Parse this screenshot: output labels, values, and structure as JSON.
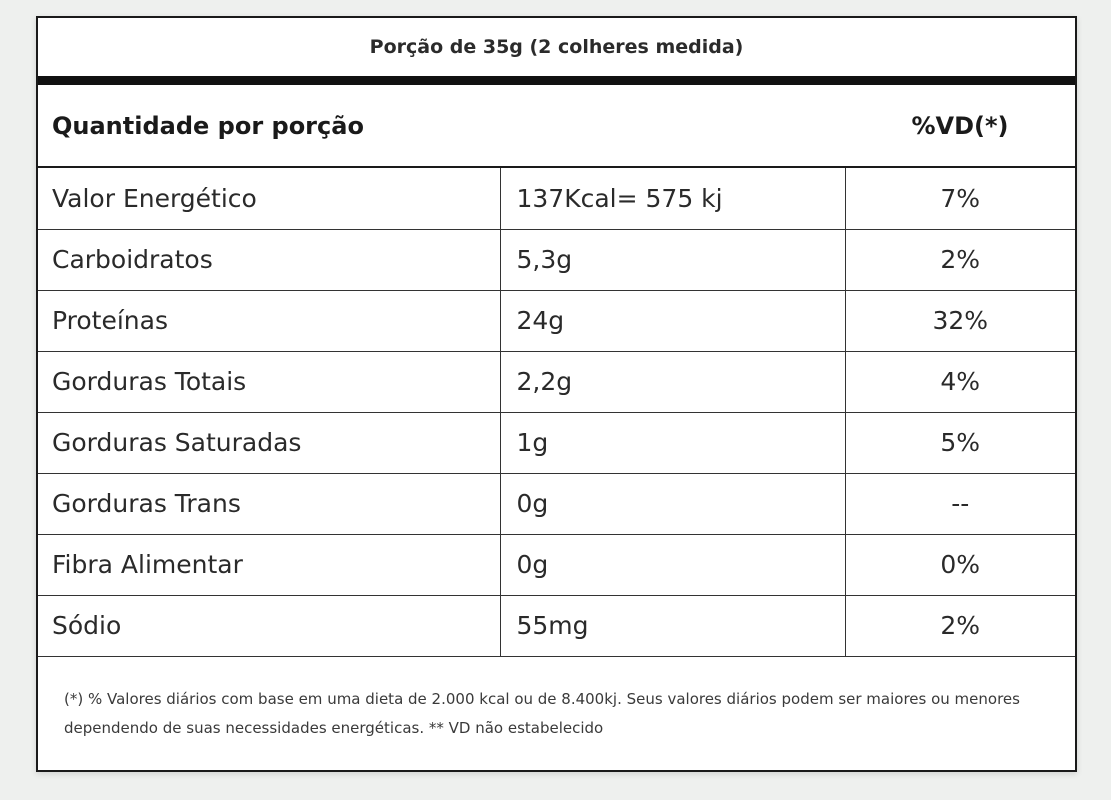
{
  "label": {
    "serving": "Porção de 35g (2 colheres medida)",
    "header": {
      "quantity": "Quantidade por porção",
      "daily_value": "%VD(*)"
    },
    "rows": [
      {
        "name": "Valor Energético",
        "amount": "137Kcal= 575 kj",
        "vd": "7%"
      },
      {
        "name": "Carboidratos",
        "amount": "5,3g",
        "vd": "2%"
      },
      {
        "name": "Proteínas",
        "amount": "24g",
        "vd": "32%"
      },
      {
        "name": "Gorduras Totais",
        "amount": "2,2g",
        "vd": "4%"
      },
      {
        "name": "Gorduras Saturadas",
        "amount": "1g",
        "vd": "5%"
      },
      {
        "name": "Gorduras Trans",
        "amount": "0g",
        "vd": "--"
      },
      {
        "name": "Fibra Alimentar",
        "amount": "0g",
        "vd": "0%"
      },
      {
        "name": "Sódio",
        "amount": "55mg",
        "vd": "2%"
      }
    ],
    "footnote": "(*) % Valores diários com base em uma dieta de 2.000 kcal ou de 8.400kj. Seus valores diários podem ser maiores ou menores dependendo de suas necessidades energéticas. ** VD não estabelecido"
  }
}
